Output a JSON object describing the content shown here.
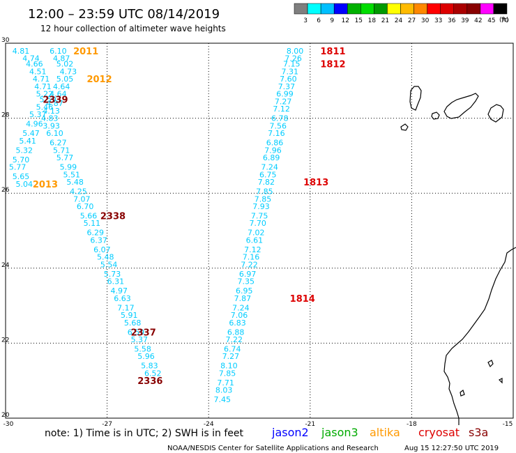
{
  "header": {
    "title": "12:00 – 23:59 UTC 08/14/2019",
    "subtitle": "12 hour collection of altimeter wave heights"
  },
  "colorbar": {
    "labels": [
      "3",
      "6",
      "9",
      "12",
      "15",
      "18",
      "21",
      "24",
      "27",
      "30",
      "33",
      "36",
      "39",
      "42",
      "45",
      "70"
    ],
    "unit": "(ft)",
    "colors": [
      "#7f7f7f",
      "#00ffff",
      "#00bfff",
      "#0000ff",
      "#00b000",
      "#00dd00",
      "#009900",
      "#ffff00",
      "#ffbb00",
      "#ff8800",
      "#ff0000",
      "#dd0000",
      "#aa0000",
      "#880000",
      "#ff00ff",
      "#000000"
    ]
  },
  "axes": {
    "lat_labels": [
      "30",
      "28",
      "26",
      "24",
      "22",
      "20"
    ],
    "lon_labels": [
      "-30",
      "-27",
      "-24",
      "-21",
      "-18",
      "-15"
    ]
  },
  "footer": {
    "note": "note:  1) Time is in UTC;  2) SWH is in feet",
    "credit": "NOAA/NESDIS Center for Satellite Applications and Research",
    "timestamp": "Aug 15 12:27:50 UTC 2019"
  },
  "legend": [
    {
      "name": "jason2",
      "color": "#0000ff"
    },
    {
      "name": "jason3",
      "color": "#00aa00"
    },
    {
      "name": "altika",
      "color": "#ff9900"
    },
    {
      "name": "cryosat",
      "color": "#dd0000"
    },
    {
      "name": "s3a",
      "color": "#880000"
    }
  ],
  "chart_data": {
    "type": "scatter",
    "xlim": [
      -30,
      -15
    ],
    "ylim": [
      20,
      30
    ],
    "grid": true,
    "series": [
      {
        "name": "jason3",
        "color": "#00ccff",
        "points": [
          {
            "x": -29.8,
            "y": 29.8,
            "value": "4.81"
          },
          {
            "x": -29.5,
            "y": 29.6,
            "value": "4.74"
          },
          {
            "x": -29.4,
            "y": 29.45,
            "value": "4.66"
          },
          {
            "x": -29.3,
            "y": 29.25,
            "value": "4.51"
          },
          {
            "x": -29.2,
            "y": 29.05,
            "value": "4.71"
          },
          {
            "x": -29.15,
            "y": 28.85,
            "value": "4.71"
          },
          {
            "x": -29.1,
            "y": 28.65,
            "value": "5.22"
          },
          {
            "x": -29.0,
            "y": 28.5,
            "value": "5.59"
          },
          {
            "x": -29.1,
            "y": 28.3,
            "value": "5.46"
          },
          {
            "x": -29.3,
            "y": 28.1,
            "value": "5.37"
          },
          {
            "x": -29.4,
            "y": 27.85,
            "value": "4.96"
          },
          {
            "x": -29.5,
            "y": 27.6,
            "value": "5.47"
          },
          {
            "x": -29.6,
            "y": 27.4,
            "value": "5.41"
          },
          {
            "x": -29.7,
            "y": 27.15,
            "value": "5.32"
          },
          {
            "x": -29.8,
            "y": 26.9,
            "value": "5.70"
          },
          {
            "x": -29.9,
            "y": 26.7,
            "value": "5.77"
          },
          {
            "x": -29.8,
            "y": 26.45,
            "value": "5.65"
          },
          {
            "x": -29.7,
            "y": 26.25,
            "value": "5.04"
          },
          {
            "x": -28.7,
            "y": 29.8,
            "value": "6.10"
          },
          {
            "x": -28.6,
            "y": 29.6,
            "value": "4.87"
          },
          {
            "x": -28.5,
            "y": 29.45,
            "value": "5.02"
          },
          {
            "x": -28.4,
            "y": 29.25,
            "value": "4.73"
          },
          {
            "x": -28.5,
            "y": 29.05,
            "value": "5.05"
          },
          {
            "x": -28.6,
            "y": 28.85,
            "value": "4.64"
          },
          {
            "x": -28.7,
            "y": 28.65,
            "value": "4.64"
          },
          {
            "x": -28.8,
            "y": 28.4,
            "value": "4.87"
          },
          {
            "x": -28.9,
            "y": 28.2,
            "value": "4.13"
          },
          {
            "x": -28.95,
            "y": 28.0,
            "value": "4.83"
          },
          {
            "x": -28.9,
            "y": 27.8,
            "value": "3.93"
          },
          {
            "x": -28.8,
            "y": 27.6,
            "value": "6.10"
          },
          {
            "x": -28.7,
            "y": 27.35,
            "value": "6.27"
          },
          {
            "x": -28.6,
            "y": 27.15,
            "value": "5.71"
          },
          {
            "x": -28.5,
            "y": 26.95,
            "value": "5.77"
          },
          {
            "x": -28.4,
            "y": 26.7,
            "value": "5.99"
          },
          {
            "x": -28.3,
            "y": 26.5,
            "value": "5.51"
          },
          {
            "x": -28.2,
            "y": 26.3,
            "value": "5.48"
          },
          {
            "x": -28.1,
            "y": 26.05,
            "value": "4.25"
          },
          {
            "x": -28.0,
            "y": 25.85,
            "value": "7.07"
          },
          {
            "x": -27.9,
            "y": 25.65,
            "value": "6.70"
          },
          {
            "x": -27.8,
            "y": 25.4,
            "value": "5.66"
          },
          {
            "x": -27.7,
            "y": 25.2,
            "value": "5.11"
          },
          {
            "x": -27.6,
            "y": 24.95,
            "value": "6.29"
          },
          {
            "x": -27.5,
            "y": 24.75,
            "value": "6.37"
          },
          {
            "x": -27.4,
            "y": 24.5,
            "value": "6.07"
          },
          {
            "x": -27.3,
            "y": 24.3,
            "value": "5.48"
          },
          {
            "x": -27.2,
            "y": 24.1,
            "value": "5.54"
          },
          {
            "x": -27.1,
            "y": 23.85,
            "value": "5.73"
          },
          {
            "x": -27.0,
            "y": 23.65,
            "value": "6.31"
          },
          {
            "x": -26.9,
            "y": 23.4,
            "value": "4.97"
          },
          {
            "x": -26.8,
            "y": 23.2,
            "value": "6.63"
          },
          {
            "x": -26.7,
            "y": 22.95,
            "value": "7.17"
          },
          {
            "x": -26.6,
            "y": 22.75,
            "value": "5.91"
          },
          {
            "x": -26.5,
            "y": 22.55,
            "value": "5.68"
          },
          {
            "x": -26.4,
            "y": 22.3,
            "value": "6.59"
          },
          {
            "x": -26.3,
            "y": 22.1,
            "value": "5.37"
          },
          {
            "x": -26.2,
            "y": 21.85,
            "value": "5.58"
          },
          {
            "x": -26.1,
            "y": 21.65,
            "value": "5.96"
          },
          {
            "x": -26.0,
            "y": 21.4,
            "value": "5.83"
          },
          {
            "x": -25.9,
            "y": 21.2,
            "value": "6.52"
          },
          {
            "x": -21.7,
            "y": 29.8,
            "value": "8.00"
          },
          {
            "x": -21.75,
            "y": 29.6,
            "value": "7.26"
          },
          {
            "x": -21.8,
            "y": 29.45,
            "value": "7.15"
          },
          {
            "x": -21.85,
            "y": 29.25,
            "value": "7.31"
          },
          {
            "x": -21.9,
            "y": 29.05,
            "value": "7.60"
          },
          {
            "x": -21.95,
            "y": 28.85,
            "value": "7.37"
          },
          {
            "x": -22.0,
            "y": 28.65,
            "value": "6.99"
          },
          {
            "x": -22.05,
            "y": 28.45,
            "value": "7.27"
          },
          {
            "x": -22.1,
            "y": 28.25,
            "value": "7.12"
          },
          {
            "x": -22.15,
            "y": 28.0,
            "value": "6.78"
          },
          {
            "x": -22.2,
            "y": 27.8,
            "value": "7.56"
          },
          {
            "x": -22.25,
            "y": 27.6,
            "value": "7.16"
          },
          {
            "x": -22.3,
            "y": 27.35,
            "value": "6.86"
          },
          {
            "x": -22.35,
            "y": 27.15,
            "value": "7.96"
          },
          {
            "x": -22.4,
            "y": 26.95,
            "value": "6.89"
          },
          {
            "x": -22.45,
            "y": 26.7,
            "value": "7.24"
          },
          {
            "x": -22.5,
            "y": 26.5,
            "value": "6.75"
          },
          {
            "x": -22.55,
            "y": 26.3,
            "value": "7.82"
          },
          {
            "x": -22.6,
            "y": 26.05,
            "value": "7.85"
          },
          {
            "x": -22.65,
            "y": 25.85,
            "value": "7.85"
          },
          {
            "x": -22.7,
            "y": 25.65,
            "value": "7.93"
          },
          {
            "x": -22.75,
            "y": 25.4,
            "value": "7.75"
          },
          {
            "x": -22.8,
            "y": 25.2,
            "value": "7.70"
          },
          {
            "x": -22.85,
            "y": 24.95,
            "value": "7.02"
          },
          {
            "x": -22.9,
            "y": 24.75,
            "value": "6.61"
          },
          {
            "x": -22.95,
            "y": 24.5,
            "value": "7.12"
          },
          {
            "x": -23.0,
            "y": 24.3,
            "value": "7.16"
          },
          {
            "x": -23.05,
            "y": 24.1,
            "value": "7.22"
          },
          {
            "x": -23.1,
            "y": 23.85,
            "value": "6.97"
          },
          {
            "x": -23.15,
            "y": 23.65,
            "value": "7.35"
          },
          {
            "x": -23.2,
            "y": 23.4,
            "value": "6.95"
          },
          {
            "x": -23.25,
            "y": 23.2,
            "value": "7.87"
          },
          {
            "x": -23.3,
            "y": 22.95,
            "value": "7.24"
          },
          {
            "x": -23.35,
            "y": 22.75,
            "value": "7.06"
          },
          {
            "x": -23.4,
            "y": 22.55,
            "value": "6.83"
          },
          {
            "x": -23.45,
            "y": 22.3,
            "value": "6.88"
          },
          {
            "x": -23.5,
            "y": 22.1,
            "value": "7.22"
          },
          {
            "x": -23.55,
            "y": 21.85,
            "value": "6.74"
          },
          {
            "x": -23.6,
            "y": 21.65,
            "value": "7.27"
          },
          {
            "x": -23.65,
            "y": 21.4,
            "value": "8.10"
          },
          {
            "x": -23.7,
            "y": 21.2,
            "value": "7.85"
          },
          {
            "x": -23.75,
            "y": 20.95,
            "value": "7.71"
          },
          {
            "x": -23.8,
            "y": 20.75,
            "value": "8.03"
          },
          {
            "x": -23.85,
            "y": 20.5,
            "value": "7.45"
          }
        ]
      }
    ],
    "time_labels": [
      {
        "x": -28.0,
        "y": 29.8,
        "text": "2011",
        "color": "#ff9900"
      },
      {
        "x": -27.6,
        "y": 29.05,
        "text": "2012",
        "color": "#ff9900"
      },
      {
        "x": -28.9,
        "y": 28.5,
        "text": "2339",
        "color": "#880000"
      },
      {
        "x": -29.2,
        "y": 26.25,
        "text": "2013",
        "color": "#ff9900"
      },
      {
        "x": -27.2,
        "y": 25.4,
        "text": "2338",
        "color": "#880000"
      },
      {
        "x": -26.3,
        "y": 22.3,
        "text": "2337",
        "color": "#880000"
      },
      {
        "x": -26.1,
        "y": 21.0,
        "text": "2336",
        "color": "#880000"
      },
      {
        "x": -20.7,
        "y": 29.8,
        "text": "1811",
        "color": "#dd0000"
      },
      {
        "x": -20.7,
        "y": 29.45,
        "text": "1812",
        "color": "#dd0000"
      },
      {
        "x": -21.2,
        "y": 26.3,
        "text": "1813",
        "color": "#dd0000"
      },
      {
        "x": -21.6,
        "y": 23.2,
        "text": "1814",
        "color": "#dd0000"
      }
    ]
  }
}
